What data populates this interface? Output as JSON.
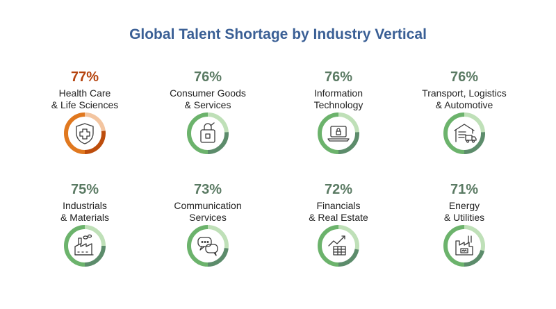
{
  "page": {
    "title": "Global Talent Shortage by Industry Vertical"
  },
  "chart_data": {
    "type": "donut",
    "title": "Global Talent Shortage by Industry Vertical",
    "items": [
      {
        "value": 77,
        "value_label": "77%",
        "line1": "Health Care",
        "line2": "& Life Sciences",
        "icon": "shield-cross-icon",
        "highlight": true
      },
      {
        "value": 76,
        "value_label": "76%",
        "line1": "Consumer Goods",
        "line2": "& Services",
        "icon": "shopping-bag-icon",
        "highlight": false
      },
      {
        "value": 76,
        "value_label": "76%",
        "line1": "Information",
        "line2": "Technology",
        "icon": "laptop-lock-icon",
        "highlight": false
      },
      {
        "value": 76,
        "value_label": "76%",
        "line1": "Transport, Logistics",
        "line2": "& Automotive",
        "icon": "warehouse-truck-icon",
        "highlight": false
      },
      {
        "value": 75,
        "value_label": "75%",
        "line1": "Industrials",
        "line2": "& Materials",
        "icon": "factory-icon",
        "highlight": false
      },
      {
        "value": 73,
        "value_label": "73%",
        "line1": "Communication",
        "line2": "Services",
        "icon": "chat-bubbles-icon",
        "highlight": false
      },
      {
        "value": 72,
        "value_label": "72%",
        "line1": "Financials",
        "line2": "& Real Estate",
        "icon": "chart-building-icon",
        "highlight": false
      },
      {
        "value": 71,
        "value_label": "71%",
        "line1": "Energy",
        "line2": "& Utilities",
        "icon": "power-plant-icon",
        "highlight": false
      }
    ]
  },
  "colors": {
    "title": "#3a5f95",
    "value_text": "#5a7a63",
    "highlight_text": "#b5440f",
    "ring_dark": "#5c8c6b",
    "ring_mid": "#6cb36c",
    "ring_light": "#bfe0b8",
    "highlight_ring_dark": "#bd4d0c",
    "highlight_ring_mid": "#e0781f",
    "highlight_ring_light": "#f3c5a0",
    "icon": "#3a3a3a"
  }
}
